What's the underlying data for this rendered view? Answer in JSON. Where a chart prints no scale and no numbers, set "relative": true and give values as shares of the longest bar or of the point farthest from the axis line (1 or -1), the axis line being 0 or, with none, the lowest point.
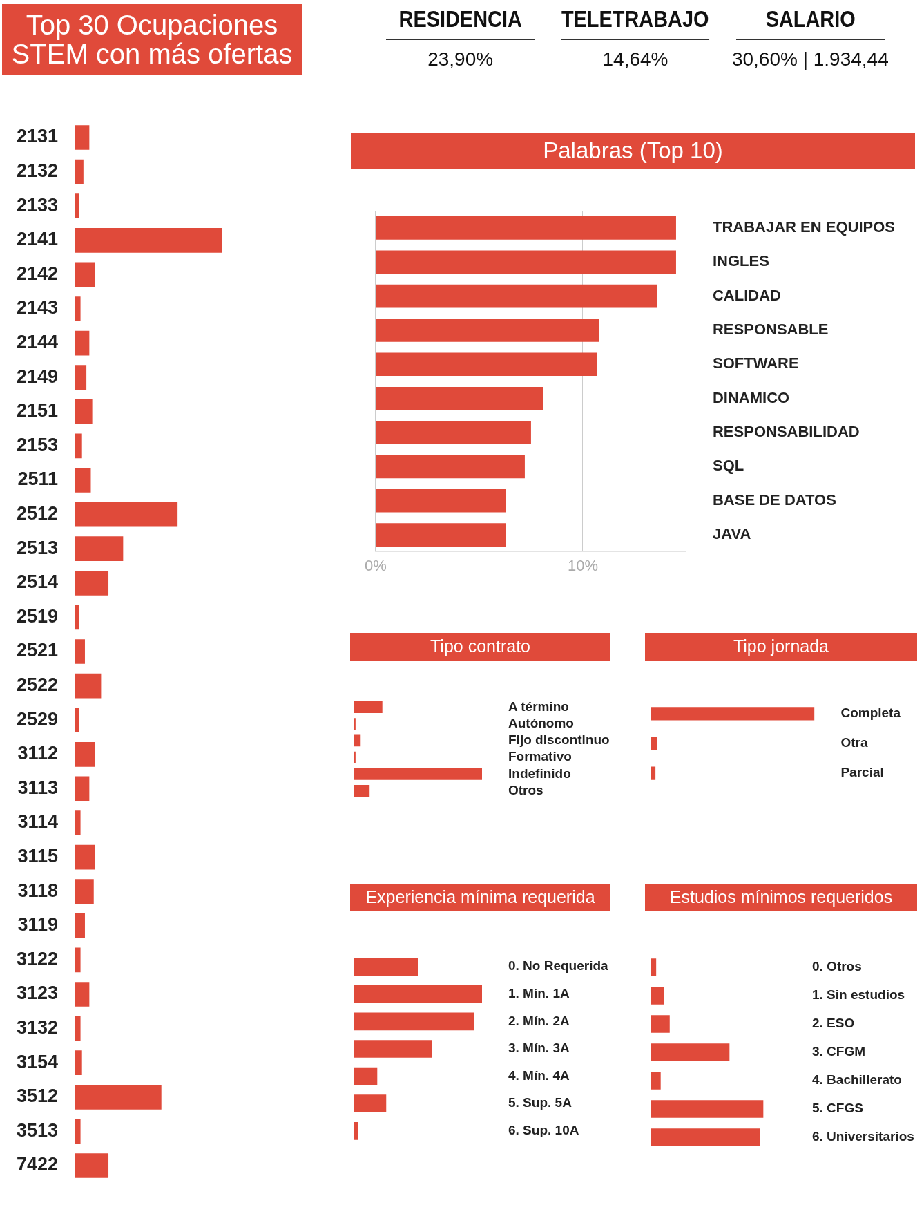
{
  "chart_data": [
    {
      "type": "bar",
      "title": "Top 30 Ocupaciones STEM con más ofertas",
      "orientation": "horizontal",
      "relative": true,
      "color": "#e04a3a",
      "categories": [
        "2131",
        "2132",
        "2133",
        "2141",
        "2142",
        "2143",
        "2144",
        "2149",
        "2151",
        "2153",
        "2511",
        "2512",
        "2513",
        "2514",
        "2519",
        "2521",
        "2522",
        "2529",
        "3112",
        "3113",
        "3114",
        "3115",
        "3118",
        "3119",
        "3122",
        "3123",
        "3132",
        "3154",
        "3512",
        "3513",
        "7422"
      ],
      "values": [
        0.1,
        0.06,
        0.03,
        1,
        0.14,
        0.04,
        0.1,
        0.08,
        0.12,
        0.05,
        0.11,
        0.7,
        0.33,
        0.23,
        0.03,
        0.07,
        0.18,
        0.03,
        0.14,
        0.1,
        0.04,
        0.14,
        0.13,
        0.07,
        0.04,
        0.1,
        0.04,
        0.05,
        0.59,
        0.04,
        0.23
      ]
    },
    {
      "type": "other",
      "annotations": [
        "RESIDENCIA",
        "TELETRABAJO",
        "SALARIO",
        "23,90%",
        "14,64%",
        "30,60% | 1.934,44"
      ]
    },
    {
      "type": "bar",
      "title": "Palabras (Top 10)",
      "orientation": "horizontal",
      "color": "#e04a3a",
      "grid": "x",
      "categories": [
        "TRABAJAR EN EQUIPOS",
        "INGLES",
        "CALIDAD",
        "RESPONSABLE",
        "SOFTWARE",
        "DINAMICO",
        "RESPONSABILIDAD",
        "SQL",
        "BASE DE DATOS",
        "JAVA"
      ],
      "values": [
        14.5,
        14.5,
        13.6,
        10.8,
        10.7,
        8.1,
        7.5,
        7.2,
        6.3,
        6.3
      ],
      "xlim": [
        0,
        15
      ],
      "xticks": [
        {
          "value": 0,
          "label": "0%"
        },
        {
          "value": 10,
          "label": "10%"
        }
      ]
    },
    {
      "type": "bar",
      "title": "Tipo contrato",
      "orientation": "horizontal",
      "relative": true,
      "color": "#e04a3a",
      "categories": [
        "A término",
        "Autónomo",
        "Fijo discontinuo",
        "Formativo",
        "Indefinido",
        "Otros"
      ],
      "values": [
        0.22,
        0.01,
        0.05,
        0.01,
        1,
        0.12
      ]
    },
    {
      "type": "bar",
      "title": "Tipo jornada",
      "orientation": "horizontal",
      "relative": true,
      "color": "#e04a3a",
      "categories": [
        "Completa",
        "Otra",
        "Parcial"
      ],
      "values": [
        1,
        0.04,
        0.03
      ]
    },
    {
      "type": "bar",
      "title": "Experiencia mínima requerida",
      "orientation": "horizontal",
      "relative": true,
      "color": "#e04a3a",
      "categories": [
        "0. No Requerida",
        "1. Mín. 1A",
        "2. Mín. 2A",
        "3. Mín. 3A",
        "4. Mín. 4A",
        "5. Sup. 5A",
        "6. Sup. 10A"
      ],
      "values": [
        0.5,
        1,
        0.94,
        0.61,
        0.18,
        0.25,
        0.03
      ]
    },
    {
      "type": "bar",
      "title": "Estudios mínimos requeridos",
      "orientation": "horizontal",
      "relative": true,
      "color": "#e04a3a",
      "categories": [
        "0. Otros",
        "1. Sin estudios",
        "2. ESO",
        "3. CFGM",
        "4. Bachillerato",
        "5. CFGS",
        "6. Universitarios"
      ],
      "values": [
        0.05,
        0.12,
        0.17,
        0.7,
        0.09,
        1,
        0.97
      ]
    }
  ]
}
